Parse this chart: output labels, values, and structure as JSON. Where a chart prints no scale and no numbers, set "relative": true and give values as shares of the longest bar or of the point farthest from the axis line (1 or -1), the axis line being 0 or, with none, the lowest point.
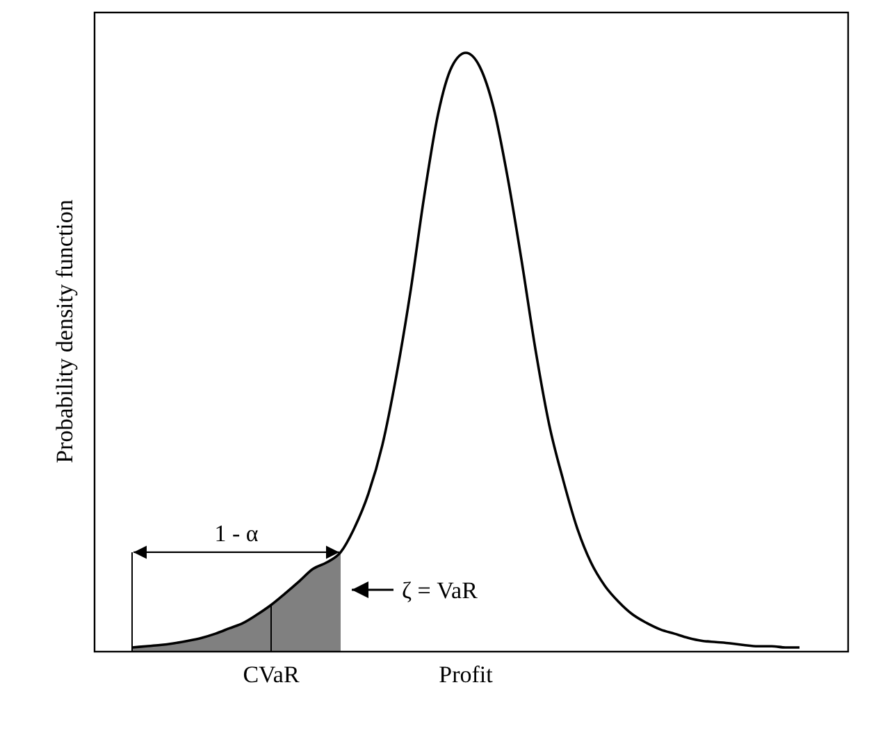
{
  "chart_data": {
    "type": "line",
    "relative": true,
    "ylabel": "Probability density function",
    "categories": [
      null,
      null,
      null,
      null,
      null,
      null,
      null,
      null,
      null,
      null,
      "CVaR",
      null,
      null,
      null,
      null,
      null,
      null,
      null,
      null,
      null,
      null,
      null,
      null,
      null,
      "Profit",
      null,
      null,
      null,
      null,
      null,
      null,
      null,
      null,
      null,
      null,
      null,
      null,
      null,
      null,
      null,
      null,
      null,
      null,
      null,
      null,
      null,
      null,
      null,
      null
    ],
    "series": [
      {
        "type": "area",
        "color": "#808080",
        "values": [
          0.007,
          0.009,
          0.011,
          0.014,
          0.018,
          0.023,
          0.03,
          0.039,
          0.048,
          0.062,
          0.078,
          0.097,
          0.117,
          0.138,
          0.149,
          0.166,
          null,
          null,
          null,
          null,
          null,
          null,
          null,
          null,
          null,
          null,
          null,
          null,
          null,
          null,
          null,
          null,
          null,
          null,
          null,
          null,
          null,
          null,
          null,
          null,
          null,
          null,
          null,
          null,
          null,
          null,
          null,
          null,
          null
        ]
      },
      {
        "type": "line",
        "color": "#000000",
        "values": [
          0.007,
          0.009,
          0.011,
          0.014,
          0.018,
          0.023,
          0.03,
          0.039,
          0.048,
          0.062,
          0.078,
          0.097,
          0.117,
          0.138,
          0.149,
          0.166,
          0.207,
          0.264,
          0.345,
          0.46,
          0.598,
          0.759,
          0.897,
          0.977,
          1,
          0.977,
          0.908,
          0.793,
          0.655,
          0.506,
          0.379,
          0.287,
          0.207,
          0.149,
          0.11,
          0.083,
          0.062,
          0.048,
          0.037,
          0.03,
          0.023,
          0.018,
          0.016,
          0.014,
          0.011,
          0.009,
          0.009,
          0.007,
          0.007
        ]
      }
    ],
    "annotations": [
      "1 - α",
      "ζ = VaR"
    ]
  }
}
